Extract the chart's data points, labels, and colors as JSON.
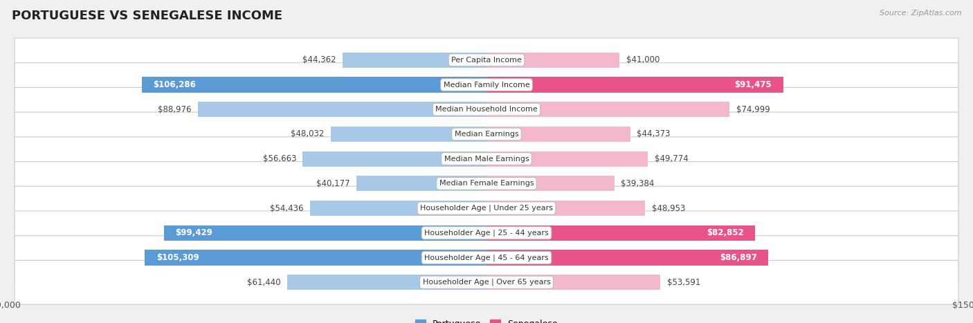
{
  "title": "PORTUGUESE VS SENEGALESE INCOME",
  "source": "Source: ZipAtlas.com",
  "categories": [
    "Per Capita Income",
    "Median Family Income",
    "Median Household Income",
    "Median Earnings",
    "Median Male Earnings",
    "Median Female Earnings",
    "Householder Age | Under 25 years",
    "Householder Age | 25 - 44 years",
    "Householder Age | 45 - 64 years",
    "Householder Age | Over 65 years"
  ],
  "portuguese_values": [
    44362,
    106286,
    88976,
    48032,
    56663,
    40177,
    54436,
    99429,
    105309,
    61440
  ],
  "senegalese_values": [
    41000,
    91475,
    74999,
    44373,
    49774,
    39384,
    48953,
    82852,
    86897,
    53591
  ],
  "portuguese_labels": [
    "$44,362",
    "$106,286",
    "$88,976",
    "$48,032",
    "$56,663",
    "$40,177",
    "$54,436",
    "$99,429",
    "$105,309",
    "$61,440"
  ],
  "senegalese_labels": [
    "$41,000",
    "$91,475",
    "$74,999",
    "$44,373",
    "$49,774",
    "$39,384",
    "$48,953",
    "$82,852",
    "$86,897",
    "$53,591"
  ],
  "portuguese_color_light": "#a8c8e8",
  "portuguese_color_bold": "#5b9bd5",
  "senegalese_color_light": "#f4b8cc",
  "senegalese_color_bold": "#e8538a",
  "portuguese_bold_threshold": 90000,
  "senegalese_bold_threshold": 80000,
  "max_value": 150000,
  "background_color": "#f0f0f0",
  "row_bg_color": "#ffffff",
  "title_fontsize": 13,
  "label_fontsize": 8.5,
  "category_fontsize": 8,
  "axis_fontsize": 9
}
